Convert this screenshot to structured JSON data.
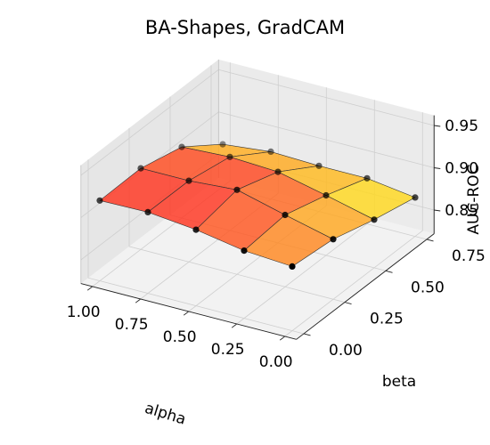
{
  "chart_data": {
    "type": "surface3d",
    "title": "BA-Shapes, GradCAM",
    "xlabel": "alpha",
    "ylabel": "beta",
    "zlabel": "AUC-ROC",
    "x_ticks": [
      "0.00",
      "0.25",
      "0.50",
      "0.75",
      "1.00"
    ],
    "y_ticks": [
      "0.00",
      "0.25",
      "0.50",
      "0.75"
    ],
    "z_ticks": [
      "0.85",
      "0.90",
      "0.95"
    ],
    "alpha": [
      0.0,
      0.25,
      0.5,
      0.75,
      1.0
    ],
    "beta": [
      0.0,
      0.25,
      0.5,
      0.75
    ],
    "zlim": [
      0.85,
      0.95
    ],
    "colormap": [
      "#ffff1e",
      "#ffa020",
      "#ff2020"
    ],
    "grid": true,
    "auc_roc": [
      [
        0.898,
        0.902,
        0.912,
        0.918,
        0.917
      ],
      [
        0.893,
        0.907,
        0.922,
        0.918,
        0.918
      ],
      [
        0.879,
        0.893,
        0.906,
        0.909,
        0.906
      ],
      [
        0.868,
        0.876,
        0.876,
        0.878,
        0.872
      ]
    ]
  }
}
